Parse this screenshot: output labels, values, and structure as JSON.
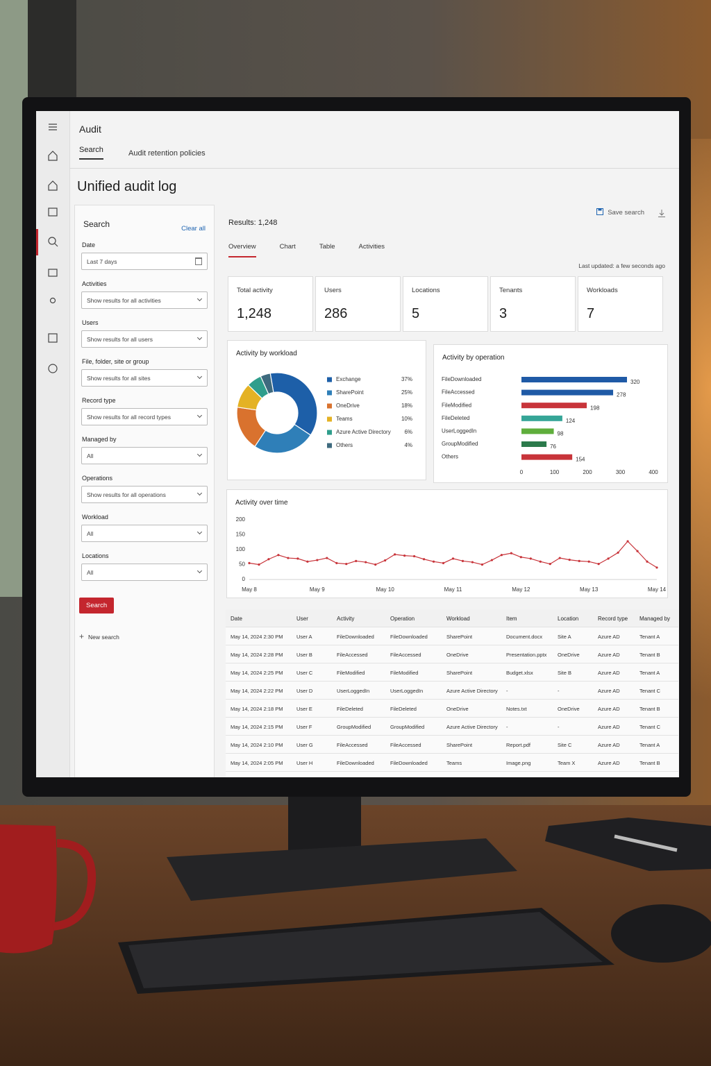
{
  "app": {
    "title": "Audit",
    "tabs": [
      "Search",
      "Audit retention policies"
    ],
    "page_title": "Unified audit log"
  },
  "search_panel": {
    "title": "Search",
    "clear": "Clear all",
    "fields": [
      {
        "label": "Date",
        "value": "Last 7 days"
      },
      {
        "label": "Activities",
        "value": "Show results for all activities"
      },
      {
        "label": "Users",
        "value": "Show results for all users"
      },
      {
        "label": "File, folder, site or group",
        "value": "Show results for all sites"
      },
      {
        "label": "Record type",
        "value": "Show results for all record types"
      },
      {
        "label": "Managed by",
        "value": "All"
      },
      {
        "label": "Operations",
        "value": "Show results for all operations"
      },
      {
        "label": "Workload",
        "value": "All"
      },
      {
        "label": "Locations",
        "value": "All"
      }
    ],
    "button": "Search",
    "new_search": "New search"
  },
  "results": {
    "count": "Results: 1,248",
    "save": "Save search",
    "tabs": [
      "Overview",
      "Chart",
      "Table",
      "Activities"
    ],
    "last_updated": "Last updated: a few seconds ago"
  },
  "kpis": [
    {
      "label": "Total activity",
      "value": "1,248"
    },
    {
      "label": "Users",
      "value": "286"
    },
    {
      "label": "Locations",
      "value": "5"
    },
    {
      "label": "Tenants",
      "value": "3"
    },
    {
      "label": "Workloads",
      "value": "7"
    }
  ],
  "chart_data": [
    {
      "type": "pie",
      "title": "Activity by workload",
      "categories": [
        "Exchange",
        "SharePoint",
        "OneDrive",
        "Teams",
        "Azure Active Directory",
        "Others"
      ],
      "values": [
        37,
        25,
        18,
        10,
        6,
        4
      ],
      "value_labels": [
        "37%",
        "25%",
        "18%",
        "10%",
        "6%",
        "4%"
      ],
      "colors": [
        "#1d5fa8",
        "#2f7fb8",
        "#d9722e",
        "#e4b224",
        "#2f9e8c",
        "#3e6a7e"
      ],
      "donut": true
    },
    {
      "type": "bar",
      "orientation": "horizontal",
      "title": "Activity by operation",
      "categories": [
        "FileDownloaded",
        "FileAccessed",
        "FileModified",
        "FileDeleted",
        "UserLoggedIn",
        "GroupModified",
        "Others"
      ],
      "values": [
        320,
        278,
        198,
        124,
        98,
        76,
        154
      ],
      "colors": [
        "#1f5aa6",
        "#1f5aa6",
        "#c8343a",
        "#35a597",
        "#5fae3c",
        "#2c7a4b",
        "#c8343a"
      ],
      "xlim": [
        0,
        400
      ],
      "xticks": [
        0,
        100,
        200,
        300,
        400
      ],
      "grid": false
    },
    {
      "type": "line",
      "title": "Activity over time",
      "categories": [
        "May 8",
        null,
        null,
        null,
        null,
        null,
        null,
        "May 9",
        null,
        null,
        null,
        null,
        null,
        null,
        "May 10",
        null,
        null,
        null,
        null,
        null,
        null,
        "May 11",
        null,
        null,
        null,
        null,
        null,
        null,
        "May 12",
        null,
        null,
        null,
        null,
        null,
        null,
        "May 13",
        null,
        null,
        null,
        null,
        null,
        null,
        "May 14"
      ],
      "values": [
        55,
        50,
        68,
        82,
        72,
        70,
        60,
        65,
        72,
        55,
        52,
        62,
        58,
        50,
        64,
        84,
        80,
        78,
        68,
        60,
        55,
        70,
        62,
        58,
        50,
        65,
        82,
        88,
        75,
        70,
        60,
        52,
        72,
        66,
        62,
        60,
        52,
        70,
        90,
        128,
        95,
        60,
        40
      ],
      "color": "#c8343a",
      "ylim": [
        0,
        200
      ],
      "yticks": [
        0,
        50,
        100,
        150,
        200
      ],
      "grid": false,
      "markers": true
    }
  ],
  "table": {
    "columns": [
      "Date",
      "User",
      "Activity",
      "Operation",
      "Workload",
      "Item",
      "Location",
      "Record type",
      "Managed by"
    ],
    "rows": [
      [
        "May 14, 2024 2:30 PM",
        "User A",
        "FileDownloaded",
        "FileDownloaded",
        "SharePoint",
        "Document.docx",
        "Site A",
        "Azure AD",
        "Tenant A"
      ],
      [
        "May 14, 2024 2:28 PM",
        "User B",
        "FileAccessed",
        "FileAccessed",
        "OneDrive",
        "Presentation.pptx",
        "OneDrive",
        "Azure AD",
        "Tenant B"
      ],
      [
        "May 14, 2024 2:25 PM",
        "User C",
        "FileModified",
        "FileModified",
        "SharePoint",
        "Budget.xlsx",
        "Site B",
        "Azure AD",
        "Tenant A"
      ],
      [
        "May 14, 2024 2:22 PM",
        "User D",
        "UserLoggedIn",
        "UserLoggedIn",
        "Azure Active Directory",
        "-",
        "-",
        "Azure AD",
        "Tenant C"
      ],
      [
        "May 14, 2024 2:18 PM",
        "User E",
        "FileDeleted",
        "FileDeleted",
        "OneDrive",
        "Notes.txt",
        "OneDrive",
        "Azure AD",
        "Tenant B"
      ],
      [
        "May 14, 2024 2:15 PM",
        "User F",
        "GroupModified",
        "GroupModified",
        "Azure Active Directory",
        "-",
        "-",
        "Azure AD",
        "Tenant C"
      ],
      [
        "May 14, 2024 2:10 PM",
        "User G",
        "FileAccessed",
        "FileAccessed",
        "SharePoint",
        "Report.pdf",
        "Site C",
        "Azure AD",
        "Tenant A"
      ],
      [
        "May 14, 2024 2:05 PM",
        "User H",
        "FileDownloaded",
        "FileDownloaded",
        "Teams",
        "Image.png",
        "Team X",
        "Azure AD",
        "Tenant B"
      ]
    ]
  }
}
